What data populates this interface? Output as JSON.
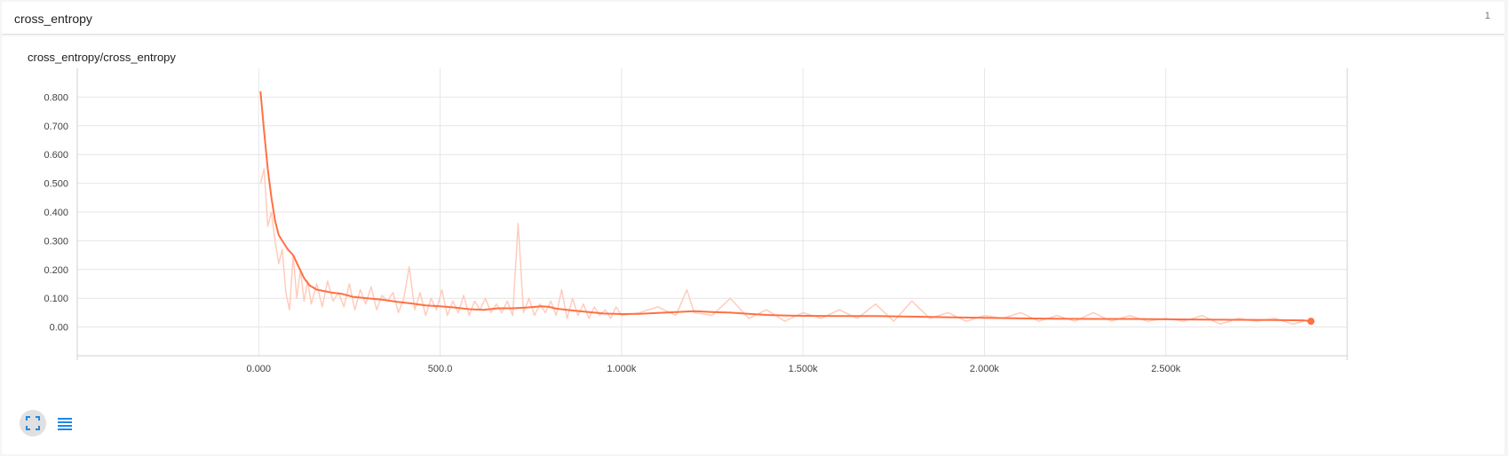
{
  "header": {
    "title": "cross_entropy",
    "count": "1"
  },
  "card": {
    "title": "cross_entropy/cross_entropy"
  },
  "controls": {
    "expand_icon": "fullscreen-icon",
    "list_icon": "list-icon"
  },
  "colors": {
    "smoothed": "#ff7043",
    "raw": "#ffccbc",
    "grid": "#e6e6e6",
    "axis": "#d0d0d0",
    "button_bg": "#e0e0e0",
    "icon": "#1e88e5"
  },
  "chart_data": {
    "type": "line",
    "title": "",
    "xlabel": "",
    "ylabel": "",
    "xlim": [
      -500,
      3000
    ],
    "ylim": [
      -0.1,
      0.9
    ],
    "x_ticks": [
      0,
      500,
      1000,
      1500,
      2000,
      2500
    ],
    "x_tick_labels": [
      "0.000",
      "500.0",
      "1.000k",
      "1.500k",
      "2.000k",
      "2.500k"
    ],
    "y_ticks": [
      0.0,
      0.1,
      0.2,
      0.3,
      0.4,
      0.5,
      0.6,
      0.7,
      0.8
    ],
    "y_tick_labels": [
      "0.00",
      "0.100",
      "0.200",
      "0.300",
      "0.400",
      "0.500",
      "0.600",
      "0.700",
      "0.800"
    ],
    "grid": true,
    "series": [
      {
        "role": "smoothed",
        "x": [
          5,
          15,
          25,
          35,
          45,
          55,
          65,
          80,
          95,
          110,
          125,
          140,
          160,
          180,
          200,
          230,
          260,
          300,
          340,
          380,
          420,
          460,
          500,
          540,
          580,
          620,
          660,
          700,
          740,
          780,
          800,
          820,
          860,
          900,
          950,
          1000,
          1050,
          1100,
          1150,
          1200,
          1250,
          1300,
          1350,
          1400,
          1450,
          1500,
          1600,
          1700,
          1800,
          1900,
          2000,
          2100,
          2200,
          2300,
          2400,
          2500,
          2600,
          2700,
          2800,
          2880,
          2900
        ],
        "y": [
          0.82,
          0.68,
          0.55,
          0.45,
          0.37,
          0.32,
          0.3,
          0.27,
          0.25,
          0.21,
          0.17,
          0.145,
          0.13,
          0.125,
          0.12,
          0.115,
          0.105,
          0.1,
          0.095,
          0.088,
          0.082,
          0.075,
          0.072,
          0.068,
          0.062,
          0.06,
          0.065,
          0.065,
          0.068,
          0.072,
          0.07,
          0.064,
          0.058,
          0.053,
          0.047,
          0.045,
          0.046,
          0.049,
          0.052,
          0.055,
          0.052,
          0.05,
          0.046,
          0.042,
          0.04,
          0.039,
          0.038,
          0.038,
          0.036,
          0.034,
          0.032,
          0.03,
          0.029,
          0.028,
          0.028,
          0.027,
          0.026,
          0.025,
          0.024,
          0.023,
          0.02
        ]
      },
      {
        "role": "raw",
        "x": [
          5,
          15,
          25,
          35,
          45,
          55,
          65,
          75,
          85,
          95,
          105,
          115,
          125,
          135,
          145,
          160,
          175,
          190,
          205,
          220,
          235,
          250,
          265,
          280,
          295,
          310,
          325,
          340,
          355,
          370,
          385,
          400,
          415,
          430,
          445,
          460,
          475,
          490,
          505,
          520,
          535,
          550,
          565,
          580,
          595,
          610,
          625,
          640,
          655,
          670,
          685,
          700,
          715,
          730,
          745,
          760,
          775,
          790,
          805,
          820,
          835,
          850,
          865,
          880,
          895,
          910,
          925,
          940,
          955,
          970,
          985,
          1000,
          1050,
          1100,
          1150,
          1180,
          1200,
          1250,
          1300,
          1350,
          1400,
          1450,
          1500,
          1550,
          1600,
          1650,
          1700,
          1750,
          1800,
          1850,
          1900,
          1950,
          2000,
          2050,
          2100,
          2150,
          2200,
          2250,
          2300,
          2350,
          2400,
          2450,
          2500,
          2550,
          2600,
          2650,
          2700,
          2750,
          2800,
          2850,
          2880
        ],
        "y": [
          0.5,
          0.55,
          0.35,
          0.4,
          0.3,
          0.22,
          0.27,
          0.12,
          0.06,
          0.25,
          0.1,
          0.2,
          0.09,
          0.16,
          0.08,
          0.15,
          0.07,
          0.16,
          0.09,
          0.12,
          0.07,
          0.15,
          0.06,
          0.13,
          0.08,
          0.14,
          0.06,
          0.11,
          0.09,
          0.12,
          0.05,
          0.1,
          0.21,
          0.06,
          0.12,
          0.04,
          0.1,
          0.06,
          0.13,
          0.04,
          0.09,
          0.05,
          0.11,
          0.04,
          0.09,
          0.06,
          0.1,
          0.05,
          0.08,
          0.05,
          0.09,
          0.04,
          0.36,
          0.05,
          0.1,
          0.04,
          0.08,
          0.05,
          0.09,
          0.04,
          0.13,
          0.03,
          0.1,
          0.04,
          0.08,
          0.03,
          0.07,
          0.04,
          0.06,
          0.03,
          0.07,
          0.04,
          0.05,
          0.07,
          0.04,
          0.13,
          0.05,
          0.04,
          0.1,
          0.03,
          0.06,
          0.02,
          0.05,
          0.03,
          0.06,
          0.03,
          0.08,
          0.02,
          0.09,
          0.03,
          0.05,
          0.02,
          0.04,
          0.03,
          0.05,
          0.02,
          0.04,
          0.02,
          0.05,
          0.02,
          0.04,
          0.02,
          0.03,
          0.02,
          0.04,
          0.01,
          0.03,
          0.02,
          0.03,
          0.01,
          0.02
        ]
      }
    ]
  }
}
